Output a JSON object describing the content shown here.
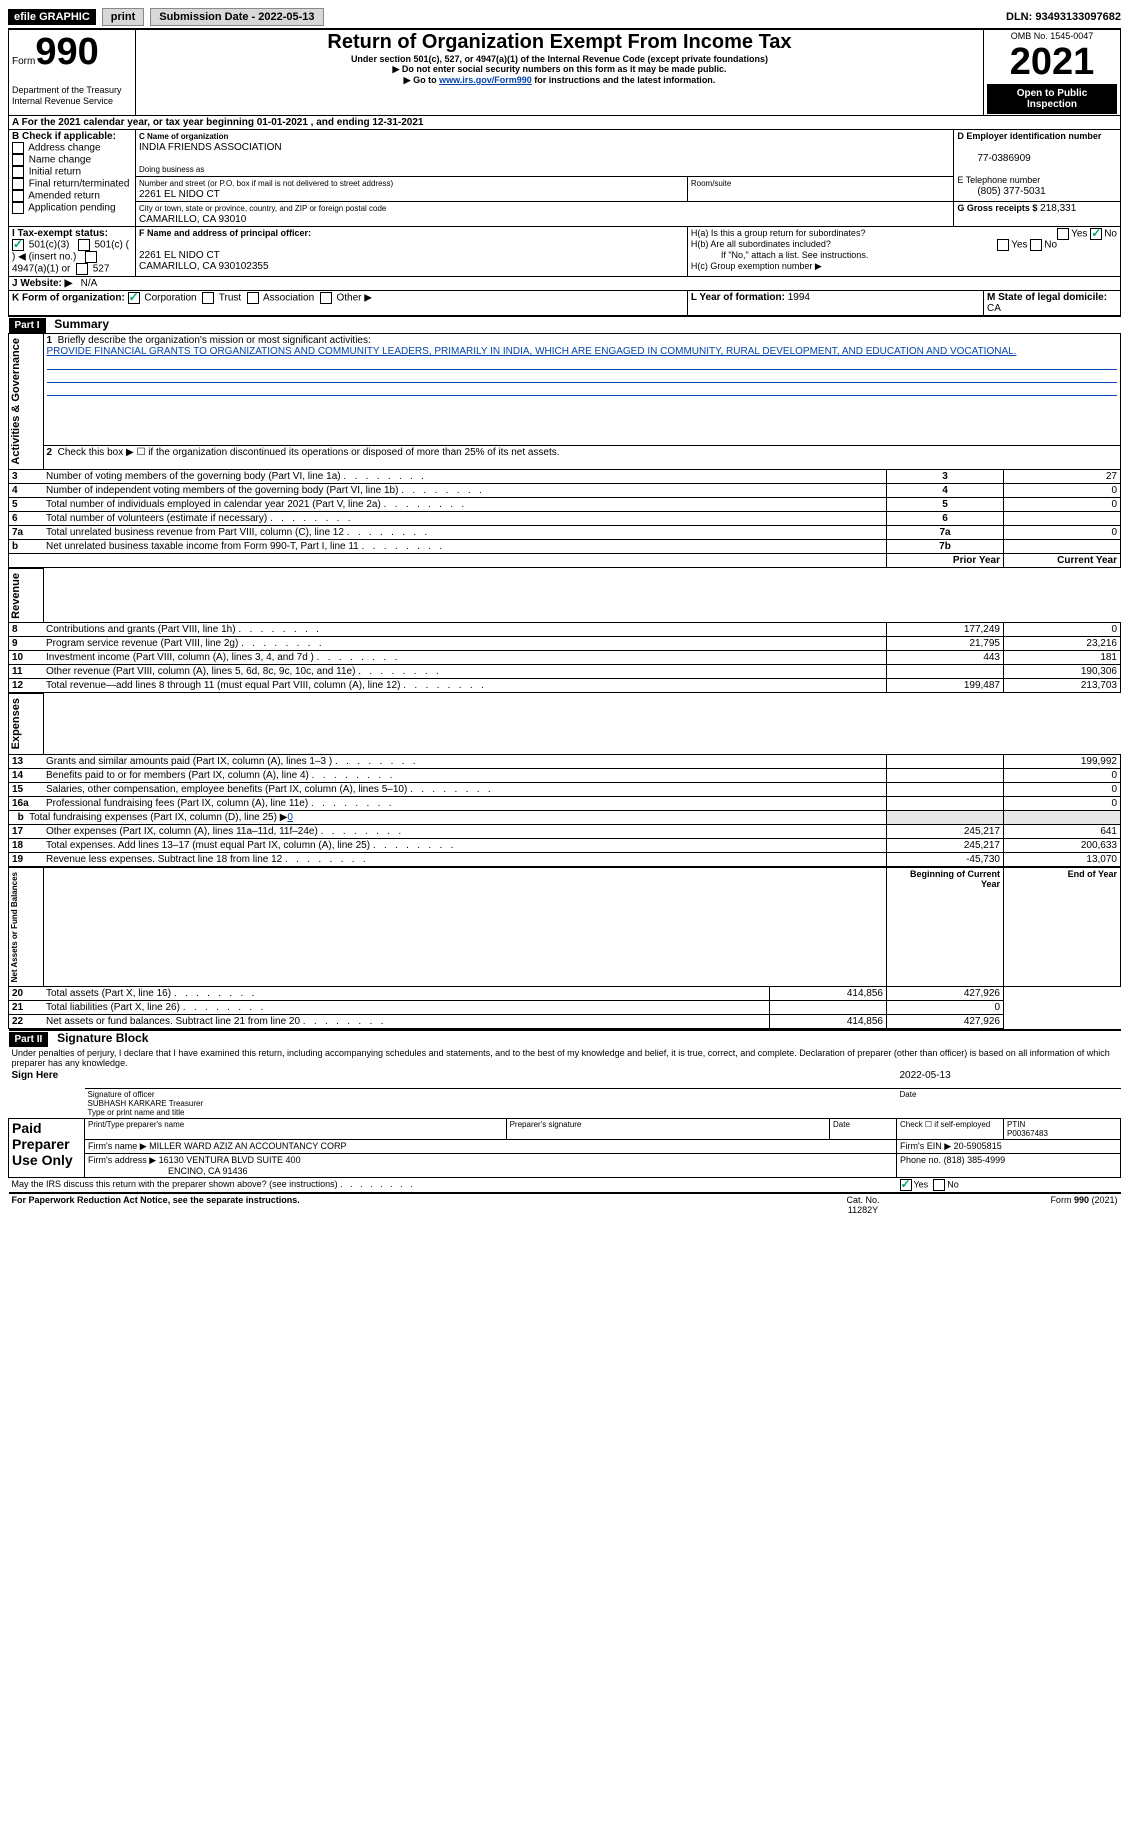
{
  "topbar": {
    "efile": "efile GRAPHIC",
    "print": "print",
    "submission_label": "Submission Date - 2022-05-13",
    "dln": "DLN: 93493133097682"
  },
  "header": {
    "form_label": "Form",
    "form_num": "990",
    "dept": "Department of the Treasury",
    "irs": "Internal Revenue Service",
    "title": "Return of Organization Exempt From Income Tax",
    "subtitle": "Under section 501(c), 527, or 4947(a)(1) of the Internal Revenue Code (except private foundations)",
    "note1": "▶ Do not enter social security numbers on this form as it may be made public.",
    "note2_pre": "▶ Go to ",
    "note2_link": "www.irs.gov/Form990",
    "note2_post": " for instructions and the latest information.",
    "omb": "OMB No. 1545-0047",
    "year": "2021",
    "open": "Open to Public Inspection"
  },
  "A": {
    "text_pre": "For the 2021 calendar year, or tax year beginning ",
    "begin": "01-01-2021",
    "mid": " , and ending ",
    "end": "12-31-2021"
  },
  "B": {
    "label": "B Check if applicable:",
    "items": [
      "Address change",
      "Name change",
      "Initial return",
      "Final return/terminated",
      "Amended return",
      "Application pending"
    ]
  },
  "C": {
    "name_label": "C Name of organization",
    "name": "INDIA FRIENDS ASSOCIATION",
    "dba_label": "Doing business as",
    "street_label": "Number and street (or P.O. box if mail is not delivered to street address)",
    "room_label": "Room/suite",
    "street": "2261 EL NIDO CT",
    "city_label": "City or town, state or province, country, and ZIP or foreign postal code",
    "city": "CAMARILLO, CA  93010"
  },
  "D": {
    "label": "D Employer identification number",
    "value": "77-0386909"
  },
  "E": {
    "label": "E Telephone number",
    "value": "(805) 377-5031"
  },
  "G": {
    "label": "G Gross receipts $",
    "value": "218,331"
  },
  "F": {
    "label": "F Name and address of principal officer:",
    "line1": "2261 EL NIDO CT",
    "line2": "CAMARILLO, CA  930102355"
  },
  "H": {
    "a": "H(a)  Is this a group return for subordinates?",
    "b": "H(b)  Are all subordinates included?",
    "note": "If \"No,\" attach a list. See instructions.",
    "c": "H(c)  Group exemption number ▶",
    "yes": "Yes",
    "no": "No"
  },
  "I": {
    "label": "I   Tax-exempt status:",
    "o1": "501(c)(3)",
    "o2": "501(c) (  ) ◀ (insert no.)",
    "o3": "4947(a)(1) or",
    "o4": "527"
  },
  "J": {
    "label": "J   Website: ▶",
    "value": "N/A"
  },
  "K": {
    "label": "K Form of organization:",
    "o1": "Corporation",
    "o2": "Trust",
    "o3": "Association",
    "o4": "Other ▶"
  },
  "L": {
    "label": "L Year of formation:",
    "value": "1994"
  },
  "M": {
    "label": "M State of legal domicile:",
    "value": "CA"
  },
  "partI": {
    "hdr": "Part I",
    "title": "Summary",
    "l1_label": "Briefly describe the organization's mission or most significant activities:",
    "l1_text": "PROVIDE FINANCIAL GRANTS TO ORGANIZATIONS AND COMMUNITY LEADERS, PRIMARILY IN INDIA, WHICH ARE ENGAGED IN COMMUNITY, RURAL DEVELOPMENT, AND EDUCATION AND VOCATIONAL.",
    "l2": "Check this box ▶ ☐ if the organization discontinued its operations or disposed of more than 25% of its net assets.",
    "rows_top": [
      {
        "n": "3",
        "t": "Number of voting members of the governing body (Part VI, line 1a)",
        "b": "3",
        "v": "27"
      },
      {
        "n": "4",
        "t": "Number of independent voting members of the governing body (Part VI, line 1b)",
        "b": "4",
        "v": "0"
      },
      {
        "n": "5",
        "t": "Total number of individuals employed in calendar year 2021 (Part V, line 2a)",
        "b": "5",
        "v": "0"
      },
      {
        "n": "6",
        "t": "Total number of volunteers (estimate if necessary)",
        "b": "6",
        "v": ""
      },
      {
        "n": "7a",
        "t": "Total unrelated business revenue from Part VIII, column (C), line 12",
        "b": "7a",
        "v": "0"
      },
      {
        "n": " b",
        "t": "Net unrelated business taxable income from Form 990-T, Part I, line 11",
        "b": "7b",
        "v": ""
      }
    ],
    "col_prior": "Prior Year",
    "col_current": "Current Year",
    "revenue": [
      {
        "n": "8",
        "t": "Contributions and grants (Part VIII, line 1h)",
        "p": "177,249",
        "c": "0"
      },
      {
        "n": "9",
        "t": "Program service revenue (Part VIII, line 2g)",
        "p": "21,795",
        "c": "23,216"
      },
      {
        "n": "10",
        "t": "Investment income (Part VIII, column (A), lines 3, 4, and 7d )",
        "p": "443",
        "c": "181"
      },
      {
        "n": "11",
        "t": "Other revenue (Part VIII, column (A), lines 5, 6d, 8c, 9c, 10c, and 11e)",
        "p": "",
        "c": "190,306"
      },
      {
        "n": "12",
        "t": "Total revenue—add lines 8 through 11 (must equal Part VIII, column (A), line 12)",
        "p": "199,487",
        "c": "213,703"
      }
    ],
    "expenses": [
      {
        "n": "13",
        "t": "Grants and similar amounts paid (Part IX, column (A), lines 1–3 )",
        "p": "",
        "c": "199,992"
      },
      {
        "n": "14",
        "t": "Benefits paid to or for members (Part IX, column (A), line 4)",
        "p": "",
        "c": "0"
      },
      {
        "n": "15",
        "t": "Salaries, other compensation, employee benefits (Part IX, column (A), lines 5–10)",
        "p": "",
        "c": "0"
      },
      {
        "n": "16a",
        "t": "Professional fundraising fees (Part IX, column (A), line 11e)",
        "p": "",
        "c": "0"
      }
    ],
    "l16b_pre": "Total fundraising expenses (Part IX, column (D), line 25) ▶",
    "l16b_val": "0",
    "expenses2": [
      {
        "n": "17",
        "t": "Other expenses (Part IX, column (A), lines 11a–11d, 11f–24e)",
        "p": "245,217",
        "c": "641"
      },
      {
        "n": "18",
        "t": "Total expenses. Add lines 13–17 (must equal Part IX, column (A), line 25)",
        "p": "245,217",
        "c": "200,633"
      },
      {
        "n": "19",
        "t": "Revenue less expenses. Subtract line 18 from line 12",
        "p": "-45,730",
        "c": "13,070"
      }
    ],
    "col_begin": "Beginning of Current Year",
    "col_end": "End of Year",
    "net": [
      {
        "n": "20",
        "t": "Total assets (Part X, line 16)",
        "p": "414,856",
        "c": "427,926"
      },
      {
        "n": "21",
        "t": "Total liabilities (Part X, line 26)",
        "p": "",
        "c": "0"
      },
      {
        "n": "22",
        "t": "Net assets or fund balances. Subtract line 21 from line 20",
        "p": "414,856",
        "c": "427,926"
      }
    ],
    "side_gov": "Activities & Governance",
    "side_rev": "Revenue",
    "side_exp": "Expenses",
    "side_net": "Net Assets or Fund Balances"
  },
  "partII": {
    "hdr": "Part II",
    "title": "Signature Block",
    "decl": "Under penalties of perjury, I declare that I have examined this return, including accompanying schedules and statements, and to the best of my knowledge and belief, it is true, correct, and complete. Declaration of preparer (other than officer) is based on all information of which preparer has any knowledge.",
    "sign_here": "Sign Here",
    "sig_officer": "Signature of officer",
    "sig_date": "2022-05-13",
    "date_label": "Date",
    "name_title": "SUBHASH KARKARE Treasurer",
    "type_name": "Type or print name and title",
    "paid": "Paid Preparer Use Only",
    "p_name": "Print/Type preparer's name",
    "p_sig": "Preparer's signature",
    "p_date": "Date",
    "p_check": "Check ☐ if self-employed",
    "ptin_label": "PTIN",
    "ptin": "P00367483",
    "firm_name_label": "Firm's name    ▶",
    "firm_name": "MILLER WARD AZIZ AN ACCOUNTANCY CORP",
    "firm_ein_label": "Firm's EIN ▶",
    "firm_ein": "20-5905815",
    "firm_addr_label": "Firm's address ▶",
    "firm_addr1": "16130 VENTURA BLVD SUITE 400",
    "firm_addr2": "ENCINO, CA  91436",
    "phone_label": "Phone no.",
    "phone": "(818) 385-4999",
    "discuss": "May the IRS discuss this return with the preparer shown above? (see instructions)"
  },
  "footer": {
    "paperwork": "For Paperwork Reduction Act Notice, see the separate instructions.",
    "cat": "Cat. No. 11282Y",
    "form": "Form 990 (2021)"
  }
}
